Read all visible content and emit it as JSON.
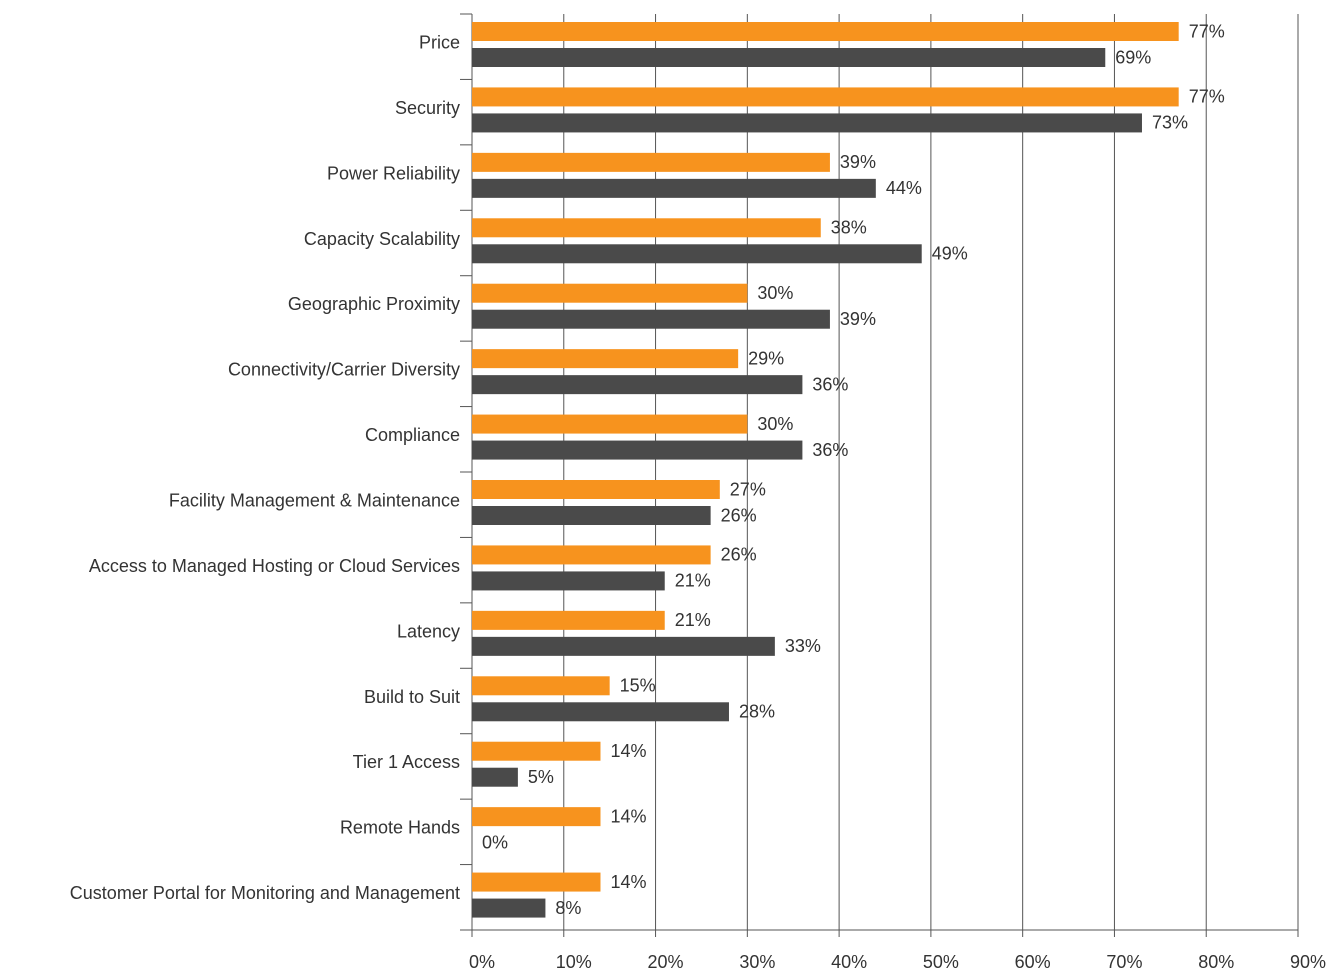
{
  "chart_data": {
    "type": "hbar",
    "categories": [
      "Price",
      "Security",
      "Power Reliability",
      "Capacity Scalability",
      "Geographic Proximity",
      "Connectivity/Carrier Diversity",
      "Compliance",
      "Facility Management & Maintenance",
      "Access to Managed Hosting or Cloud Services",
      "Latency",
      "Build to Suit",
      "Tier 1 Access",
      "Remote Hands",
      "Customer Portal for Monitoring and Management"
    ],
    "series": [
      {
        "color": "#f7931e",
        "values": [
          77,
          77,
          39,
          38,
          30,
          29,
          30,
          27,
          26,
          21,
          15,
          14,
          14,
          14
        ],
        "value_labels": [
          "77%",
          "77%",
          "39%",
          "38%",
          "30%",
          "29%",
          "30%",
          "27%",
          "26%",
          "21%",
          "15%",
          "14%",
          "14%",
          "14%"
        ]
      },
      {
        "color": "#4a4a4a",
        "values": [
          69,
          73,
          44,
          49,
          39,
          36,
          36,
          26,
          21,
          33,
          28,
          5,
          0,
          8
        ],
        "value_labels": [
          "69%",
          "73%",
          "44%",
          "49%",
          "39%",
          "36%",
          "36%",
          "26%",
          "21%",
          "33%",
          "28%",
          "5%",
          "0%",
          "8%"
        ]
      }
    ],
    "xlim": [
      0,
      90
    ],
    "xticks": [
      {
        "value": 0,
        "label": "0%"
      },
      {
        "value": 10,
        "label": "10%"
      },
      {
        "value": 20,
        "label": "20%"
      },
      {
        "value": 30,
        "label": "30%"
      },
      {
        "value": 40,
        "label": "40%"
      },
      {
        "value": 50,
        "label": "50%"
      },
      {
        "value": 60,
        "label": "60%"
      },
      {
        "value": 70,
        "label": "70%"
      },
      {
        "value": 80,
        "label": "80%"
      },
      {
        "value": 90,
        "label": "90%"
      }
    ],
    "grid": true
  }
}
